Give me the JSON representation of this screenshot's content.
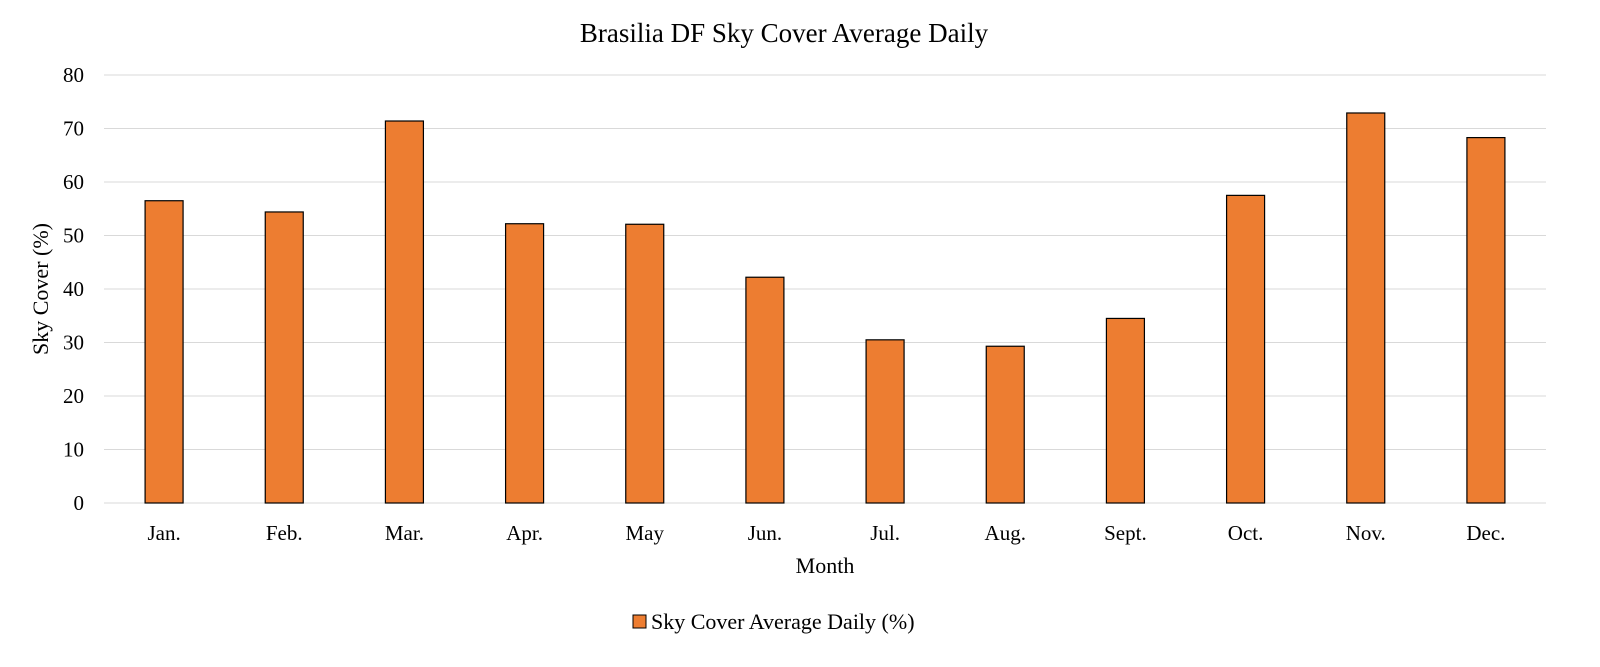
{
  "chart_data": {
    "type": "bar",
    "title": "Brasilia DF Sky Cover Average Daily",
    "xlabel": "Month",
    "ylabel": "Sky Cover (%)",
    "ylim": [
      0,
      80
    ],
    "yticks": [
      0,
      10,
      20,
      30,
      40,
      50,
      60,
      70,
      80
    ],
    "grid": true,
    "legend_position": "bottom",
    "categories": [
      "Jan.",
      "Feb.",
      "Mar.",
      "Apr.",
      "May",
      "Jun.",
      "Jul.",
      "Aug.",
      "Sept.",
      "Oct.",
      "Nov.",
      "Dec."
    ],
    "series": [
      {
        "name": "Sky Cover Average Daily (%)",
        "color": "#ED7D31",
        "values": [
          56.5,
          54.4,
          71.4,
          52.2,
          52.1,
          42.2,
          30.5,
          29.3,
          34.5,
          57.5,
          72.9,
          68.3
        ]
      }
    ]
  }
}
